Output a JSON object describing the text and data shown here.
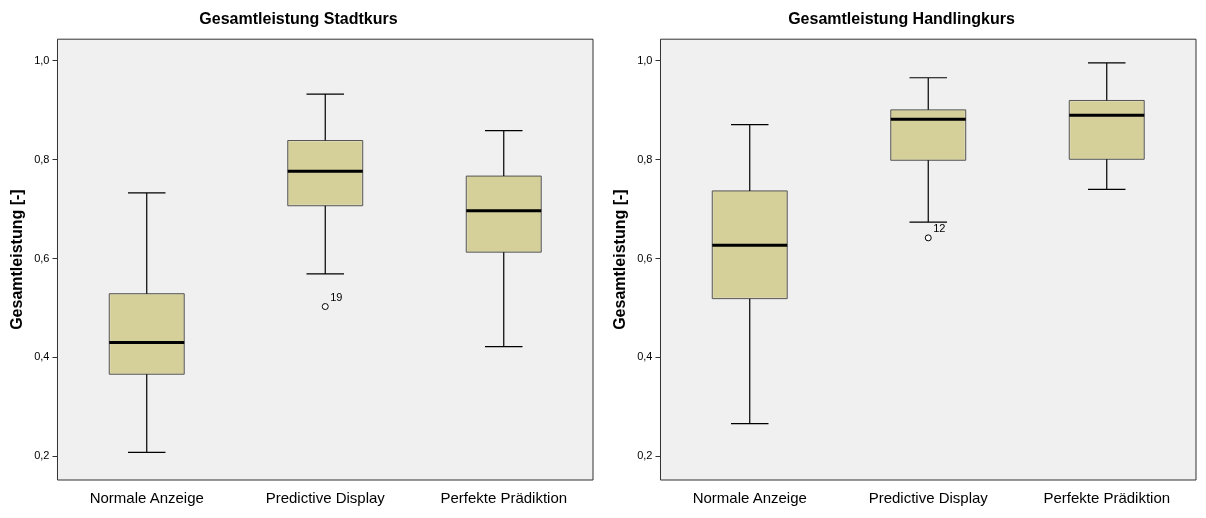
{
  "chart_data": [
    {
      "type": "box",
      "title": "Gesamtleistung Stadtkurs",
      "ylabel": "Gesamtleistung [-]",
      "categories": [
        "Normale Anzeige",
        "Predictive Display",
        "Perfekte Prädiktion"
      ],
      "series": [
        {
          "color": "#d5cf9a",
          "boxes": [
            {
              "low": 0.208,
              "q1": 0.366,
              "median": 0.43,
              "q3": 0.529,
              "high": 0.733
            },
            {
              "low": 0.569,
              "q1": 0.707,
              "median": 0.777,
              "q3": 0.839,
              "high": 0.933,
              "outliers": [
                0.503
              ]
            },
            {
              "low": 0.422,
              "q1": 0.613,
              "median": 0.697,
              "q3": 0.767,
              "high": 0.859
            }
          ]
        }
      ],
      "ylim": [
        0.152,
        1.044
      ],
      "yticks": [
        {
          "value": 0.2,
          "label": "0,2"
        },
        {
          "value": 0.4,
          "label": "0,4"
        },
        {
          "value": 0.6,
          "label": "0,6"
        },
        {
          "value": 0.8,
          "label": "0,8"
        },
        {
          "value": 1.0,
          "label": "1,0"
        }
      ],
      "annotations": [
        "19"
      ]
    },
    {
      "type": "box",
      "title": "Gesamtleistung Handlingkurs",
      "ylabel": "Gesamtleistung [-]",
      "categories": [
        "Normale Anzeige",
        "Predictive Display",
        "Perfekte Prädiktion"
      ],
      "series": [
        {
          "color": "#d5cf9a",
          "boxes": [
            {
              "low": 0.266,
              "q1": 0.519,
              "median": 0.627,
              "q3": 0.737,
              "high": 0.871
            },
            {
              "low": 0.674,
              "q1": 0.799,
              "median": 0.882,
              "q3": 0.901,
              "high": 0.966,
              "outliers": [
                0.642
              ]
            },
            {
              "low": 0.74,
              "q1": 0.801,
              "median": 0.89,
              "q3": 0.92,
              "high": 0.996
            }
          ]
        }
      ],
      "ylim": [
        0.152,
        1.044
      ],
      "yticks": [
        {
          "value": 0.2,
          "label": "0,2"
        },
        {
          "value": 0.4,
          "label": "0,4"
        },
        {
          "value": 0.6,
          "label": "0,6"
        },
        {
          "value": 0.8,
          "label": "0,8"
        },
        {
          "value": 1.0,
          "label": "1,0"
        }
      ],
      "annotations": [
        "12"
      ]
    }
  ]
}
